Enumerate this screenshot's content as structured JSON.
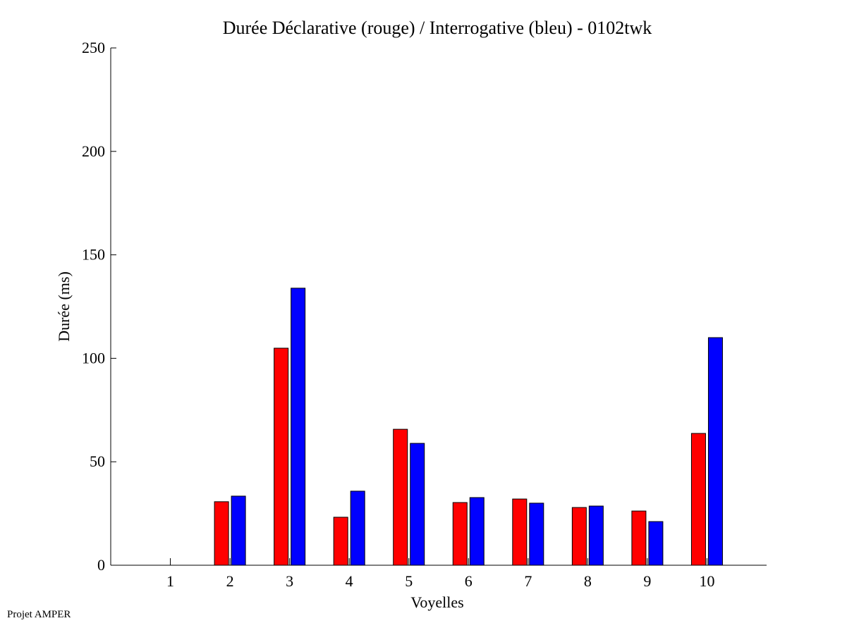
{
  "chart_data": {
    "type": "bar",
    "title": "Durée Déclarative (rouge) / Interrogative (bleu) - 0102twk",
    "xlabel": "Voyelles",
    "ylabel": "Durée (ms)",
    "categories": [
      "1",
      "2",
      "3",
      "4",
      "5",
      "6",
      "7",
      "8",
      "9",
      "10"
    ],
    "series": [
      {
        "name": "Déclarative (rouge)",
        "color": "#ff0000",
        "values": [
          0,
          30.7,
          104.9,
          23.2,
          65.7,
          30.3,
          32.0,
          27.9,
          26.2,
          63.7
        ]
      },
      {
        "name": "Interrogative (bleu)",
        "color": "#0000ff",
        "values": [
          0,
          33.4,
          133.9,
          35.8,
          58.9,
          32.7,
          30.0,
          28.6,
          21.1,
          110.0
        ]
      }
    ],
    "xlim": [
      0,
      11
    ],
    "ylim": [
      0,
      250
    ],
    "yticks": [
      0,
      50,
      100,
      150,
      200,
      250
    ],
    "grid": false,
    "legend": "none"
  },
  "footer": "Projet AMPER"
}
